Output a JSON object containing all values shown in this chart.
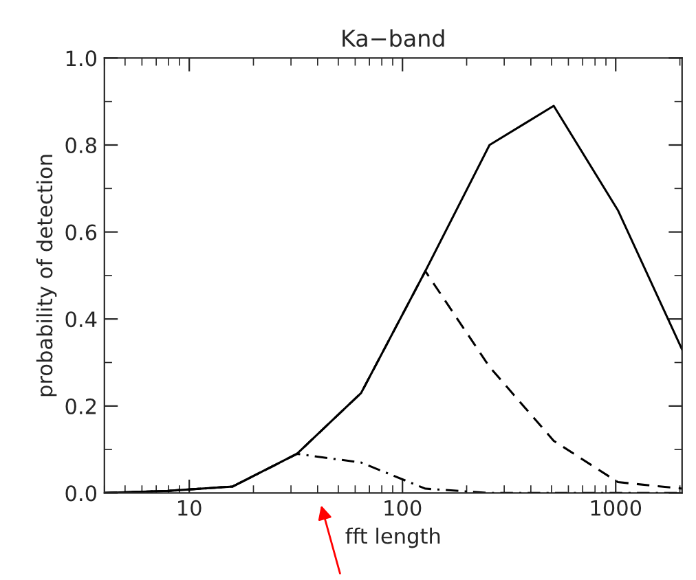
{
  "chart_data": {
    "type": "line",
    "title": "Ka−band",
    "xlabel": "fft length",
    "ylabel": "probability of detection",
    "log": "x",
    "x": [
      4,
      8,
      16,
      32,
      64,
      128,
      256,
      512,
      1024,
      2048
    ],
    "series": [
      {
        "color": "#000000",
        "line_style": "solid",
        "values": [
          0.0,
          0.005,
          0.015,
          0.09,
          0.23,
          0.51,
          0.8,
          0.89,
          0.65,
          0.33
        ]
      },
      {
        "color": "#000000",
        "line_style": "dashed",
        "values": [
          0.0,
          0.005,
          0.015,
          0.09,
          0.23,
          0.51,
          0.29,
          0.12,
          0.025,
          0.01
        ]
      },
      {
        "color": "#000000",
        "line_style": "dashdot",
        "values": [
          0.0,
          0.005,
          0.015,
          0.09,
          0.07,
          0.01,
          0.0,
          0.0,
          0.0,
          0.0
        ]
      }
    ],
    "xlim": [
      4,
      2048
    ],
    "xticks": [
      10,
      100,
      1000
    ],
    "ylim": [
      0.0,
      1.0
    ],
    "yticks": [
      {
        "value": 0.0,
        "label": "0.0"
      },
      {
        "value": 0.2,
        "label": "0.2"
      },
      {
        "value": 0.4,
        "label": "0.4"
      },
      {
        "value": 0.6,
        "label": "0.6"
      },
      {
        "value": 0.8,
        "label": "0.8"
      },
      {
        "value": 1.0,
        "label": "1.0"
      }
    ],
    "grid": false,
    "legend": false,
    "marker": "none"
  }
}
